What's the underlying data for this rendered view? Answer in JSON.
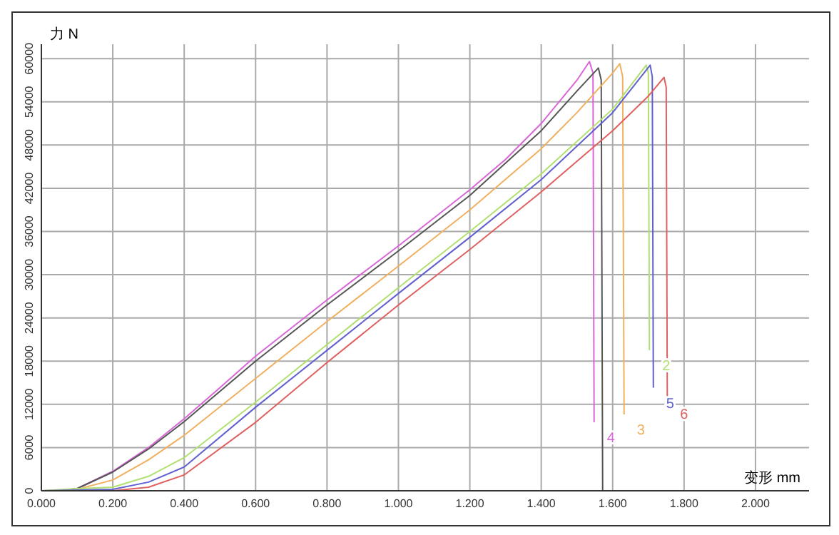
{
  "chart_data": {
    "type": "line",
    "xlabel": "变形 mm",
    "ylabel": "力 N",
    "xlim": [
      0,
      2.15
    ],
    "ylim": [
      0,
      62000
    ],
    "xticks": [
      {
        "value": 0,
        "label": "0.000"
      },
      {
        "value": 0.2,
        "label": "0.200"
      },
      {
        "value": 0.4,
        "label": "0.400"
      },
      {
        "value": 0.6,
        "label": "0.600"
      },
      {
        "value": 0.8,
        "label": "0.800"
      },
      {
        "value": 1,
        "label": "1.000"
      },
      {
        "value": 1.2,
        "label": "1.200"
      },
      {
        "value": 1.4,
        "label": "1.400"
      },
      {
        "value": 1.6,
        "label": "1.600"
      },
      {
        "value": 1.8,
        "label": "1.800"
      },
      {
        "value": 2,
        "label": "2.000"
      }
    ],
    "yticks": [
      0,
      6000,
      12000,
      18000,
      24000,
      30000,
      36000,
      42000,
      48000,
      54000,
      60000
    ],
    "grid": true,
    "legend": false,
    "marker": "none",
    "line_style": "solid",
    "series": [
      {
        "name": "4",
        "color": "#d966d9",
        "x": [
          0,
          0.05,
          0.1,
          0.2,
          0.3,
          0.4,
          0.5,
          0.6,
          0.8,
          1.0,
          1.2,
          1.3,
          1.4,
          1.5,
          1.535,
          1.545,
          1.548
        ],
        "values": [
          0,
          0,
          300,
          2700,
          6000,
          10000,
          14300,
          18700,
          26500,
          34000,
          41800,
          46000,
          51000,
          57000,
          59600,
          58000,
          9500
        ]
      },
      {
        "color": "#555555",
        "x": [
          0,
          0.05,
          0.1,
          0.2,
          0.3,
          0.4,
          0.6,
          0.8,
          1.0,
          1.2,
          1.4,
          1.5,
          1.56,
          1.568,
          1.572
        ],
        "values": [
          0,
          0,
          300,
          2600,
          5800,
          9600,
          18000,
          25800,
          33300,
          41000,
          50000,
          55500,
          58700,
          57000,
          0
        ]
      },
      {
        "name": "3",
        "color": "#f0b060",
        "x": [
          0,
          0.1,
          0.2,
          0.3,
          0.4,
          0.6,
          0.8,
          1.0,
          1.2,
          1.4,
          1.5,
          1.6,
          1.62,
          1.628,
          1.632
        ],
        "values": [
          0,
          200,
          1500,
          4300,
          7700,
          15600,
          23500,
          31200,
          39000,
          47500,
          52500,
          58000,
          59300,
          57500,
          10600
        ]
      },
      {
        "name": "2",
        "color": "#b0e070",
        "x": [
          0,
          0.1,
          0.2,
          0.3,
          0.4,
          0.6,
          0.8,
          1.0,
          1.2,
          1.4,
          1.6,
          1.694,
          1.7,
          1.703
        ],
        "values": [
          0,
          300,
          500,
          2000,
          4600,
          12300,
          20300,
          28200,
          36000,
          44000,
          53000,
          59100,
          58000,
          19500
        ]
      },
      {
        "name": "5",
        "color": "#6060d0",
        "x": [
          0,
          0.1,
          0.2,
          0.3,
          0.4,
          0.6,
          0.8,
          1.0,
          1.2,
          1.4,
          1.6,
          1.705,
          1.711,
          1.714
        ],
        "values": [
          0,
          100,
          200,
          1200,
          3300,
          11600,
          19500,
          27400,
          35200,
          43200,
          52500,
          59100,
          57500,
          14300
        ]
      },
      {
        "name": "6",
        "color": "#e06060",
        "x": [
          0,
          0.2,
          0.3,
          0.4,
          0.6,
          0.8,
          1.0,
          1.2,
          1.4,
          1.6,
          1.7,
          1.744,
          1.75,
          1.753
        ],
        "values": [
          0,
          0,
          500,
          2200,
          9500,
          17800,
          25800,
          33500,
          41500,
          50000,
          54800,
          57400,
          56000,
          12800
        ]
      }
    ]
  }
}
